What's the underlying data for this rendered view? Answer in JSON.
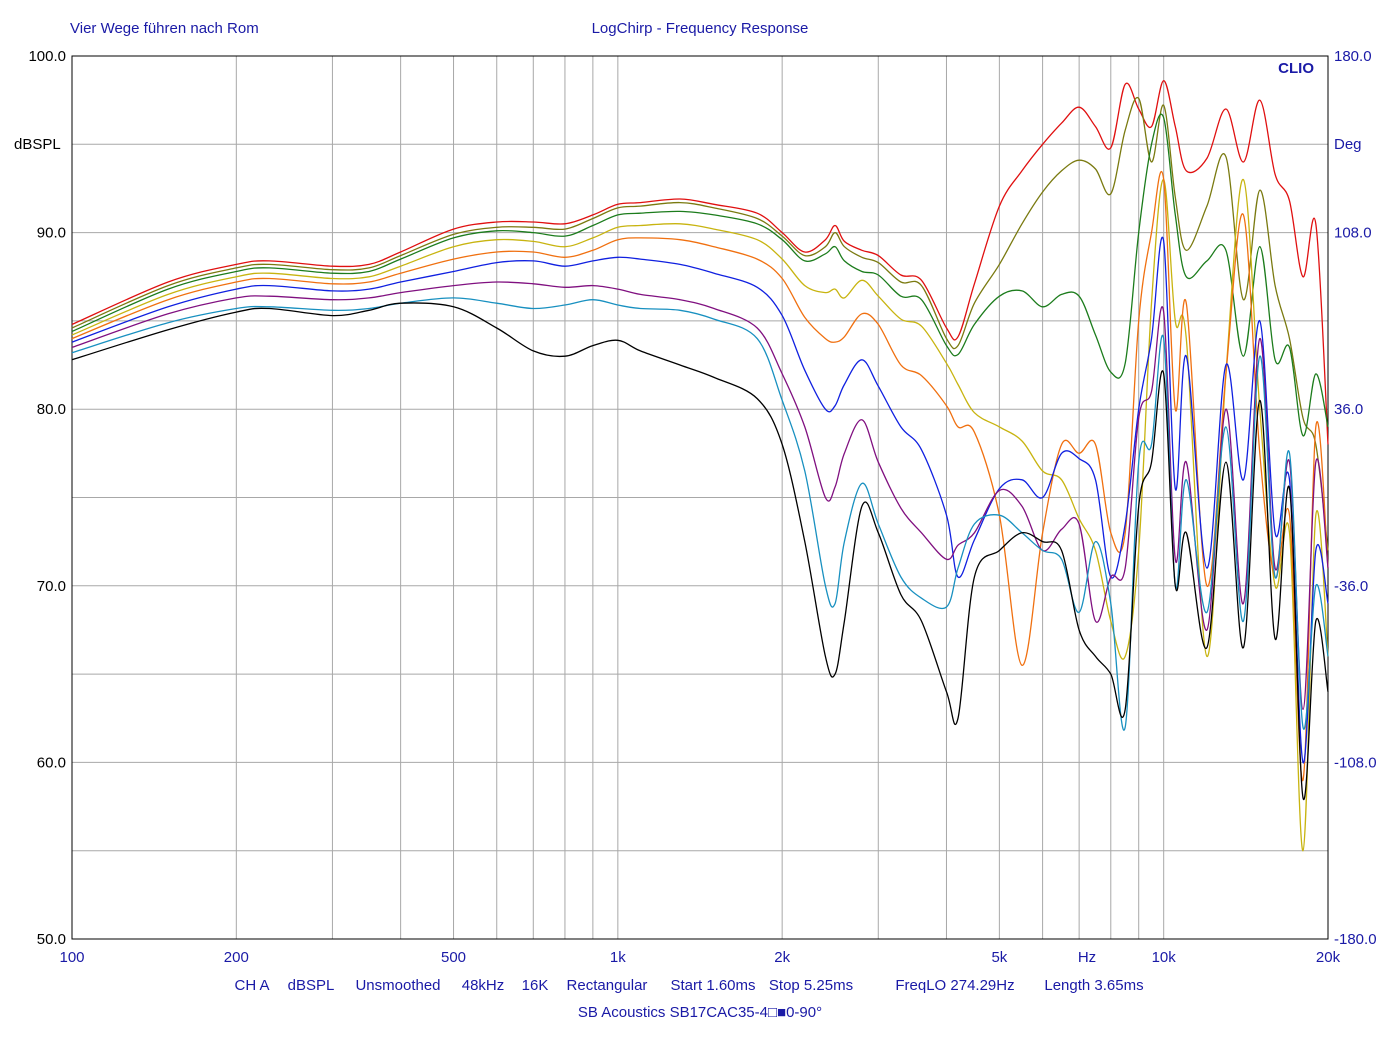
{
  "header": {
    "left_text": "Vier Wege führen nach Rom",
    "center_text": "LogChirp - Frequency Response",
    "brand": "CLIO"
  },
  "footer": {
    "settings": [
      "CH A",
      "dBSPL",
      "Unsmoothed",
      "48kHz",
      "16K",
      "Rectangular",
      "Start 1.60ms",
      "Stop 5.25ms",
      "FreqLO 274.29Hz",
      "Length 3.65ms"
    ],
    "device": "SB Acoustics SB17CAC35-4□■0-90°"
  },
  "chart_data": {
    "type": "line",
    "title": "LogChirp - Frequency Response",
    "xscale": "log",
    "xlim": [
      100,
      20000
    ],
    "ylim": [
      50,
      100
    ],
    "y2lim": [
      -180,
      180
    ],
    "ylabel": "dBSPL",
    "y2label": "Deg",
    "x_unit_label": "Hz",
    "grid": true,
    "legend": "none",
    "x_ticks": [
      {
        "v": 100,
        "label": "100"
      },
      {
        "v": 200,
        "label": "200"
      },
      {
        "v": 500,
        "label": "500"
      },
      {
        "v": 1000,
        "label": "1k"
      },
      {
        "v": 2000,
        "label": "2k"
      },
      {
        "v": 5000,
        "label": "5k"
      },
      {
        "v": 10000,
        "label": "10k"
      },
      {
        "v": 20000,
        "label": "20k"
      }
    ],
    "y_ticks": [
      {
        "v": 100,
        "label": "100.0"
      },
      {
        "v": 90,
        "label": "90.0"
      },
      {
        "v": 80,
        "label": "80.0"
      },
      {
        "v": 70,
        "label": "70.0"
      },
      {
        "v": 60,
        "label": "60.0"
      },
      {
        "v": 50,
        "label": "50.0"
      }
    ],
    "y2_ticks": [
      {
        "v": 180,
        "label": "180.0"
      },
      {
        "v": 108,
        "label": "108.0"
      },
      {
        "v": 36,
        "label": "36.0"
      },
      {
        "v": -36,
        "label": "-36.0"
      },
      {
        "v": -108,
        "label": "-108.0"
      },
      {
        "v": -180,
        "label": "-180.0"
      }
    ],
    "x": [
      100,
      150,
      200,
      230,
      300,
      350,
      400,
      500,
      600,
      700,
      800,
      900,
      1000,
      1100,
      1300,
      1500,
      1800,
      2000,
      2200,
      2400,
      2500,
      2600,
      2800,
      3000,
      3300,
      3600,
      4000,
      4200,
      4500,
      5000,
      5500,
      6000,
      6500,
      7000,
      7500,
      8000,
      8500,
      9000,
      9500,
      10000,
      10500,
      11000,
      12000,
      13000,
      14000,
      15000,
      16000,
      17000,
      18000,
      19000,
      20000
    ],
    "series": [
      {
        "color": "#e01010",
        "values": [
          84.8,
          87.2,
          88.2,
          88.4,
          88.1,
          88.2,
          88.9,
          90.2,
          90.6,
          90.6,
          90.5,
          91.0,
          91.6,
          91.7,
          91.9,
          91.6,
          91.1,
          90.0,
          88.9,
          89.6,
          90.4,
          89.5,
          89.0,
          88.7,
          87.6,
          87.3,
          84.6,
          84.1,
          87.1,
          91.5,
          93.5,
          95.0,
          96.2,
          97.1,
          96.0,
          94.8,
          98.4,
          97.0,
          96.0,
          98.6,
          96.0,
          93.5,
          94.2,
          97.0,
          94.0,
          97.5,
          93.3,
          91.8,
          87.5,
          90.5,
          78.0
        ]
      },
      {
        "color": "#7a7a10",
        "values": [
          84.6,
          87.0,
          88.0,
          88.2,
          87.9,
          88.0,
          88.7,
          89.9,
          90.3,
          90.3,
          90.2,
          90.8,
          91.4,
          91.5,
          91.7,
          91.4,
          90.8,
          89.8,
          88.7,
          89.2,
          90.0,
          89.2,
          88.6,
          88.3,
          87.2,
          87.0,
          84.0,
          83.6,
          86.0,
          88.2,
          90.5,
          92.3,
          93.5,
          94.1,
          93.6,
          92.2,
          95.8,
          97.6,
          94.0,
          97.2,
          92.0,
          89.0,
          91.5,
          94.3,
          86.2,
          92.4,
          87.0,
          84.0,
          79.5,
          78.0,
          72.0
        ]
      },
      {
        "color": "#1c7c1c",
        "values": [
          84.4,
          86.8,
          87.8,
          88.0,
          87.7,
          87.8,
          88.5,
          89.7,
          90.1,
          90.0,
          89.8,
          90.4,
          91.0,
          91.1,
          91.2,
          91.0,
          90.5,
          89.6,
          88.4,
          88.8,
          89.2,
          88.4,
          87.8,
          87.6,
          86.4,
          86.2,
          83.6,
          83.1,
          84.8,
          86.4,
          86.7,
          85.8,
          86.5,
          86.4,
          84.2,
          82.1,
          82.6,
          90.0,
          95.0,
          96.5,
          91.0,
          87.5,
          88.4,
          89.0,
          83.0,
          89.2,
          82.8,
          83.5,
          78.5,
          82.0,
          79.0
        ]
      },
      {
        "color": "#c8b410",
        "values": [
          84.2,
          86.5,
          87.5,
          87.7,
          87.4,
          87.5,
          88.1,
          89.2,
          89.6,
          89.5,
          89.2,
          89.7,
          90.3,
          90.4,
          90.5,
          90.2,
          89.6,
          88.5,
          87.0,
          86.6,
          86.8,
          86.3,
          87.3,
          86.4,
          85.1,
          84.7,
          82.6,
          81.4,
          79.8,
          79.0,
          78.2,
          76.5,
          76.0,
          73.8,
          72.0,
          68.0,
          66.0,
          72.0,
          86.0,
          93.0,
          85.0,
          84.0,
          66.0,
          82.0,
          93.0,
          80.0,
          70.0,
          73.0,
          55.0,
          74.0,
          66.0
        ]
      },
      {
        "color": "#f07010",
        "values": [
          84.0,
          86.2,
          87.2,
          87.4,
          87.1,
          87.2,
          87.7,
          88.5,
          88.9,
          88.9,
          88.6,
          89.0,
          89.6,
          89.7,
          89.6,
          89.2,
          88.5,
          87.4,
          85.2,
          84.0,
          83.8,
          84.1,
          85.4,
          84.8,
          82.5,
          81.9,
          80.2,
          79.0,
          78.7,
          74.0,
          65.5,
          73.0,
          78.0,
          77.5,
          78.0,
          73.0,
          73.0,
          85.0,
          90.0,
          93.0,
          80.0,
          86.0,
          70.0,
          82.0,
          91.0,
          77.5,
          70.5,
          74.0,
          59.0,
          79.0,
          71.0
        ]
      },
      {
        "color": "#1020e0",
        "values": [
          83.8,
          85.8,
          86.8,
          87.0,
          86.7,
          86.8,
          87.2,
          87.8,
          88.3,
          88.4,
          88.1,
          88.4,
          88.6,
          88.5,
          88.2,
          87.7,
          86.9,
          85.3,
          82.2,
          80.0,
          80.2,
          81.4,
          82.8,
          81.3,
          79.0,
          77.7,
          74.0,
          70.5,
          72.6,
          75.5,
          76.0,
          75.0,
          77.5,
          77.2,
          76.0,
          70.5,
          73.5,
          80.0,
          84.0,
          89.5,
          75.5,
          83.0,
          71.0,
          82.5,
          76.0,
          85.0,
          73.0,
          76.0,
          60.0,
          72.0,
          69.0
        ]
      },
      {
        "color": "#801080",
        "values": [
          83.5,
          85.4,
          86.3,
          86.4,
          86.2,
          86.3,
          86.6,
          87.0,
          87.2,
          87.1,
          86.9,
          87.0,
          86.8,
          86.5,
          86.2,
          85.7,
          84.6,
          82.0,
          79.0,
          75.0,
          75.6,
          77.5,
          79.4,
          77.0,
          74.4,
          73.0,
          71.5,
          72.3,
          73.0,
          75.4,
          74.5,
          72.0,
          73.2,
          73.5,
          68.0,
          70.5,
          71.0,
          79.5,
          81.0,
          85.5,
          71.5,
          77.0,
          67.5,
          80.0,
          69.0,
          84.0,
          71.0,
          77.0,
          63.0,
          77.0,
          71.0
        ]
      },
      {
        "color": "#1890c0",
        "values": [
          83.2,
          84.9,
          85.7,
          85.8,
          85.6,
          85.7,
          86.0,
          86.3,
          86.0,
          85.7,
          85.9,
          86.2,
          85.9,
          85.7,
          85.6,
          85.1,
          84.0,
          80.5,
          76.5,
          70.0,
          69.0,
          72.5,
          75.8,
          73.5,
          70.5,
          69.3,
          68.8,
          71.0,
          73.5,
          74.0,
          73.0,
          72.0,
          71.5,
          68.5,
          72.5,
          69.0,
          62.0,
          77.0,
          78.0,
          84.0,
          70.0,
          76.0,
          68.5,
          79.0,
          68.0,
          83.0,
          70.5,
          77.5,
          62.0,
          70.0,
          66.0
        ]
      },
      {
        "color": "#000000",
        "values": [
          82.8,
          84.5,
          85.5,
          85.7,
          85.3,
          85.6,
          86.0,
          85.8,
          84.6,
          83.3,
          83.0,
          83.6,
          83.9,
          83.3,
          82.5,
          81.8,
          80.6,
          78.0,
          72.5,
          66.0,
          65.0,
          68.0,
          74.5,
          73.0,
          69.5,
          68.0,
          64.0,
          62.5,
          70.5,
          72.0,
          73.0,
          72.5,
          72.0,
          67.5,
          66.0,
          65.0,
          63.0,
          74.5,
          77.0,
          82.0,
          70.0,
          73.0,
          66.5,
          77.0,
          66.5,
          80.5,
          67.0,
          75.5,
          58.0,
          68.0,
          64.0
        ]
      }
    ]
  }
}
